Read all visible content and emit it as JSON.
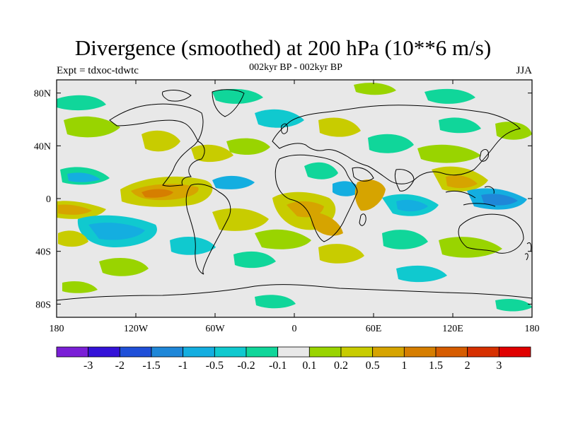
{
  "header": {
    "title": "Divergence (smoothed) at 200 hPa (10**6 m/s)",
    "experiment": "Expt = tdxoc-tdwtc",
    "period": "002kyr BP - 002kyr BP",
    "season": "JJA"
  },
  "map": {
    "projection": "cylindrical-equidistant",
    "lon_range": [
      -180,
      180
    ],
    "lat_range": [
      -90,
      90
    ],
    "lat_ticks": [
      {
        "lat": 80,
        "label": "80N"
      },
      {
        "lat": 40,
        "label": "40N"
      },
      {
        "lat": 0,
        "label": "0"
      },
      {
        "lat": -40,
        "label": "40S"
      },
      {
        "lat": -80,
        "label": "80S"
      }
    ],
    "lon_ticks": [
      {
        "lon": -180,
        "label": "180"
      },
      {
        "lon": -120,
        "label": "120W"
      },
      {
        "lon": -60,
        "label": "60W"
      },
      {
        "lon": 0,
        "label": "0"
      },
      {
        "lon": 60,
        "label": "60E"
      },
      {
        "lon": 120,
        "label": "120E"
      },
      {
        "lon": 180,
        "label": "180"
      }
    ],
    "background_color": "#e8e8e8"
  },
  "colorbar": {
    "colors": [
      "#7a1fd6",
      "#3412d8",
      "#1f4fd8",
      "#1f87d8",
      "#14aee0",
      "#10c9cf",
      "#10d69a",
      "#e8e8e8",
      "#99d400",
      "#c8cc00",
      "#d6a400",
      "#d67e00",
      "#d65c00",
      "#d63000",
      "#e00000"
    ],
    "labels": [
      "-3",
      "-2",
      "-1.5",
      "-1",
      "-0.5",
      "-0.2",
      "-0.1",
      "0.1",
      "0.2",
      "0.5",
      "1",
      "1.5",
      "2",
      "3"
    ]
  }
}
